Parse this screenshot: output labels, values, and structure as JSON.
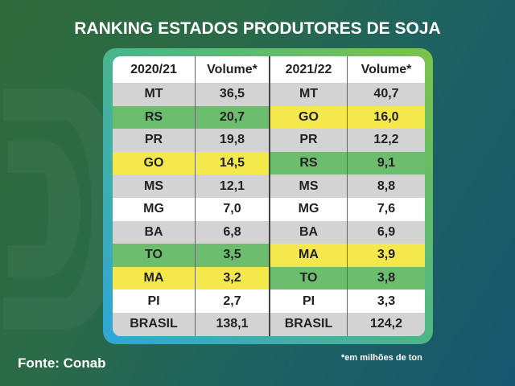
{
  "title": "RANKING ESTADOS PRODUTORES DE SOJA",
  "headers": [
    "2020/21",
    "Volume*",
    "2021/22",
    "Volume*"
  ],
  "rows": [
    {
      "s1": "MT",
      "v1": "36,5",
      "c1": "gray",
      "s2": "MT",
      "v2": "40,7",
      "c2": "gray"
    },
    {
      "s1": "RS",
      "v1": "20,7",
      "c1": "green",
      "s2": "GO",
      "v2": "16,0",
      "c2": "yellow"
    },
    {
      "s1": "PR",
      "v1": "19,8",
      "c1": "gray",
      "s2": "PR",
      "v2": "12,2",
      "c2": "gray"
    },
    {
      "s1": "GO",
      "v1": "14,5",
      "c1": "yellow",
      "s2": "RS",
      "v2": "9,1",
      "c2": "green"
    },
    {
      "s1": "MS",
      "v1": "12,1",
      "c1": "gray",
      "s2": "MS",
      "v2": "8,8",
      "c2": "gray"
    },
    {
      "s1": "MG",
      "v1": "7,0",
      "c1": "white",
      "s2": "MG",
      "v2": "7,6",
      "c2": "white"
    },
    {
      "s1": "BA",
      "v1": "6,8",
      "c1": "gray",
      "s2": "BA",
      "v2": "6,9",
      "c2": "gray"
    },
    {
      "s1": "TO",
      "v1": "3,5",
      "c1": "green",
      "s2": "MA",
      "v2": "3,9",
      "c2": "yellow"
    },
    {
      "s1": "MA",
      "v1": "3,2",
      "c1": "yellow",
      "s2": "TO",
      "v2": "3,8",
      "c2": "green"
    },
    {
      "s1": "PI",
      "v1": "2,7",
      "c1": "white",
      "s2": "PI",
      "v2": "3,3",
      "c2": "white"
    },
    {
      "s1": "BRASIL",
      "v1": "138,1",
      "c1": "gray",
      "s2": "BRASIL",
      "v2": "124,2",
      "c2": "gray"
    }
  ],
  "colors": {
    "gray": "#d3d3d3",
    "green": "#6dbd6e",
    "yellow": "#f4e84c",
    "white": "#ffffff"
  },
  "source": "Fonte: Conab",
  "note": "*em milhões de ton"
}
